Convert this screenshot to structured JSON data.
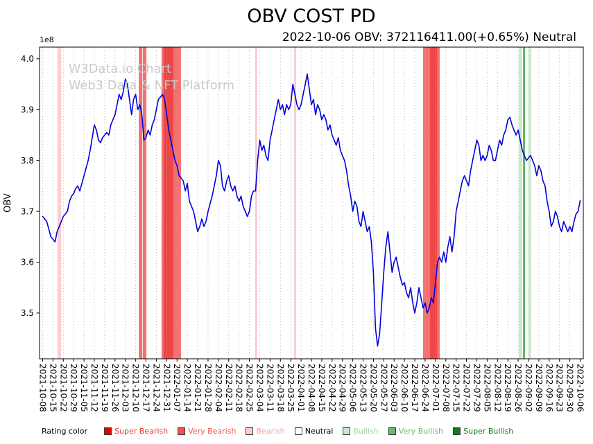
{
  "title": "OBV COST PD",
  "subtitle": "2022-10-06 OBV: 372116411.00(+0.65%) Neutral",
  "watermark": {
    "line1": "W3Data.io Chart",
    "line2": "Web3 Data & NFT Platform"
  },
  "legend": {
    "label": "Rating color",
    "items": [
      {
        "label": "Super Bearish",
        "swatch": "#e80000",
        "text_color": "#e53935"
      },
      {
        "label": "Very Bearish",
        "swatch": "#ef5350",
        "text_color": "#ef5350"
      },
      {
        "label": "Bearish",
        "swatch": "#ffccd0",
        "text_color": "#f2a0a8"
      },
      {
        "label": "Neutral",
        "swatch": "#ffffff",
        "text_color": "#000000"
      },
      {
        "label": "Bullish",
        "swatch": "#c8e6c9",
        "text_color": "#a5d6a7"
      },
      {
        "label": "Very Bullish",
        "swatch": "#66bb6a",
        "text_color": "#66bb6a"
      },
      {
        "label": "Super Bullish",
        "swatch": "#0f7d12",
        "text_color": "#0f7d12"
      }
    ]
  },
  "chart_data": {
    "type": "line",
    "title": "OBV COST PD",
    "ylabel": "OBV",
    "y_offset_label": "1e8",
    "y_unit": 100000000,
    "ylim": [
      3.41,
      4.023
    ],
    "yticks": [
      3.5,
      3.6,
      3.7,
      3.8,
      3.9,
      4.0
    ],
    "grid": "vertical-dotted",
    "line_color": "#0000dd",
    "x_tick_step_days": 5,
    "xlim_days": [
      -1.5,
      261.5
    ],
    "x_tick_labels": [
      "2021-10-08",
      "2021-10-15",
      "2021-10-22",
      "2021-10-29",
      "2021-11-05",
      "2021-11-12",
      "2021-11-19",
      "2021-11-26",
      "2021-12-03",
      "2021-12-10",
      "2021-12-17",
      "2021-12-24",
      "2021-12-31",
      "2022-01-07",
      "2022-01-14",
      "2022-01-21",
      "2022-01-28",
      "2022-02-04",
      "2022-02-11",
      "2022-02-18",
      "2022-02-25",
      "2022-03-04",
      "2022-03-11",
      "2022-03-18",
      "2022-03-25",
      "2022-04-01",
      "2022-04-08",
      "2022-04-15",
      "2022-04-22",
      "2022-04-29",
      "2022-05-06",
      "2022-05-13",
      "2022-05-20",
      "2022-05-27",
      "2022-06-03",
      "2022-06-10",
      "2022-06-17",
      "2022-06-24",
      "2022-07-01",
      "2022-07-08",
      "2022-07-15",
      "2022-07-22",
      "2022-07-29",
      "2022-08-05",
      "2022-08-12",
      "2022-08-19",
      "2022-08-26",
      "2022-09-02",
      "2022-09-09",
      "2022-09-16",
      "2022-09-23",
      "2022-09-30",
      "2022-10-06"
    ],
    "series": [
      {
        "name": "OBV",
        "values": [
          3.69,
          3.685,
          3.68,
          3.665,
          3.65,
          3.645,
          3.64,
          3.66,
          3.67,
          3.68,
          3.69,
          3.695,
          3.7,
          3.72,
          3.73,
          3.735,
          3.745,
          3.75,
          3.74,
          3.755,
          3.77,
          3.785,
          3.8,
          3.82,
          3.845,
          3.87,
          3.86,
          3.84,
          3.835,
          3.845,
          3.85,
          3.855,
          3.85,
          3.87,
          3.88,
          3.89,
          3.91,
          3.93,
          3.92,
          3.935,
          3.96,
          3.95,
          3.92,
          3.89,
          3.92,
          3.93,
          3.9,
          3.91,
          3.89,
          3.84,
          3.845,
          3.86,
          3.85,
          3.87,
          3.88,
          3.9,
          3.92,
          3.925,
          3.93,
          3.92,
          3.89,
          3.86,
          3.84,
          3.82,
          3.8,
          3.79,
          3.77,
          3.765,
          3.76,
          3.74,
          3.755,
          3.72,
          3.71,
          3.7,
          3.68,
          3.66,
          3.67,
          3.685,
          3.67,
          3.68,
          3.7,
          3.715,
          3.73,
          3.75,
          3.77,
          3.8,
          3.79,
          3.75,
          3.74,
          3.76,
          3.77,
          3.75,
          3.74,
          3.75,
          3.73,
          3.72,
          3.73,
          3.71,
          3.7,
          3.69,
          3.7,
          3.73,
          3.74,
          3.74,
          3.8,
          3.84,
          3.82,
          3.83,
          3.81,
          3.8,
          3.84,
          3.86,
          3.88,
          3.9,
          3.92,
          3.9,
          3.91,
          3.89,
          3.91,
          3.9,
          3.91,
          3.95,
          3.93,
          3.91,
          3.9,
          3.91,
          3.93,
          3.95,
          3.97,
          3.94,
          3.91,
          3.92,
          3.89,
          3.91,
          3.9,
          3.88,
          3.89,
          3.88,
          3.86,
          3.87,
          3.85,
          3.84,
          3.83,
          3.845,
          3.82,
          3.81,
          3.8,
          3.78,
          3.75,
          3.73,
          3.7,
          3.72,
          3.71,
          3.68,
          3.67,
          3.7,
          3.68,
          3.66,
          3.67,
          3.64,
          3.58,
          3.47,
          3.435,
          3.46,
          3.52,
          3.58,
          3.63,
          3.66,
          3.62,
          3.58,
          3.6,
          3.61,
          3.59,
          3.57,
          3.555,
          3.56,
          3.54,
          3.53,
          3.55,
          3.52,
          3.5,
          3.52,
          3.55,
          3.53,
          3.51,
          3.52,
          3.5,
          3.51,
          3.53,
          3.52,
          3.56,
          3.6,
          3.61,
          3.6,
          3.62,
          3.6,
          3.63,
          3.65,
          3.62,
          3.65,
          3.7,
          3.72,
          3.74,
          3.76,
          3.77,
          3.76,
          3.75,
          3.78,
          3.8,
          3.82,
          3.84,
          3.83,
          3.8,
          3.81,
          3.8,
          3.81,
          3.83,
          3.82,
          3.8,
          3.8,
          3.82,
          3.84,
          3.83,
          3.85,
          3.86,
          3.88,
          3.885,
          3.87,
          3.86,
          3.85,
          3.86,
          3.84,
          3.82,
          3.81,
          3.8,
          3.805,
          3.81,
          3.8,
          3.79,
          3.77,
          3.79,
          3.78,
          3.76,
          3.75,
          3.72,
          3.7,
          3.67,
          3.68,
          3.7,
          3.69,
          3.67,
          3.66,
          3.68,
          3.67,
          3.66,
          3.67,
          3.66,
          3.68,
          3.695,
          3.7,
          3.721
        ]
      }
    ],
    "bands": [
      {
        "from": 7.2,
        "to": 8.9,
        "rating": "Bearish",
        "color": "#fbc8cc",
        "opacity": 0.9
      },
      {
        "from": 46.5,
        "to": 48.2,
        "rating": "Very Bearish",
        "color": "#f25757",
        "opacity": 0.85
      },
      {
        "from": 48.5,
        "to": 50.2,
        "rating": "Very Bearish",
        "color": "#f25757",
        "opacity": 0.85
      },
      {
        "from": 57.5,
        "to": 66.9,
        "rating": "Very Bearish",
        "color": "#f25757",
        "opacity": 0.85
      },
      {
        "from": 58.5,
        "to": 63.2,
        "rating": "Super Bearish",
        "color": "#ea3c3c",
        "opacity": 0.8
      },
      {
        "from": 102.8,
        "to": 103.8,
        "rating": "Bearish",
        "color": "#fbc8cc",
        "opacity": 0.9
      },
      {
        "from": 121.6,
        "to": 122.6,
        "rating": "Bearish",
        "color": "#fbc8cc",
        "opacity": 0.9
      },
      {
        "from": 184.0,
        "to": 192.1,
        "rating": "Very Bearish",
        "color": "#f25757",
        "opacity": 0.85
      },
      {
        "from": 187.4,
        "to": 190.8,
        "rating": "Super Bearish",
        "color": "#ea3c3c",
        "opacity": 0.8
      },
      {
        "from": 230.3,
        "to": 232.0,
        "rating": "Bullish",
        "color": "#c9e8c9",
        "opacity": 0.95
      },
      {
        "from": 232.3,
        "to": 233.3,
        "rating": "Very Bullish",
        "color": "#58b658",
        "opacity": 0.95
      },
      {
        "from": 235.0,
        "to": 236.3,
        "rating": "Bullish",
        "color": "#c9e8c9",
        "opacity": 0.95
      }
    ]
  }
}
